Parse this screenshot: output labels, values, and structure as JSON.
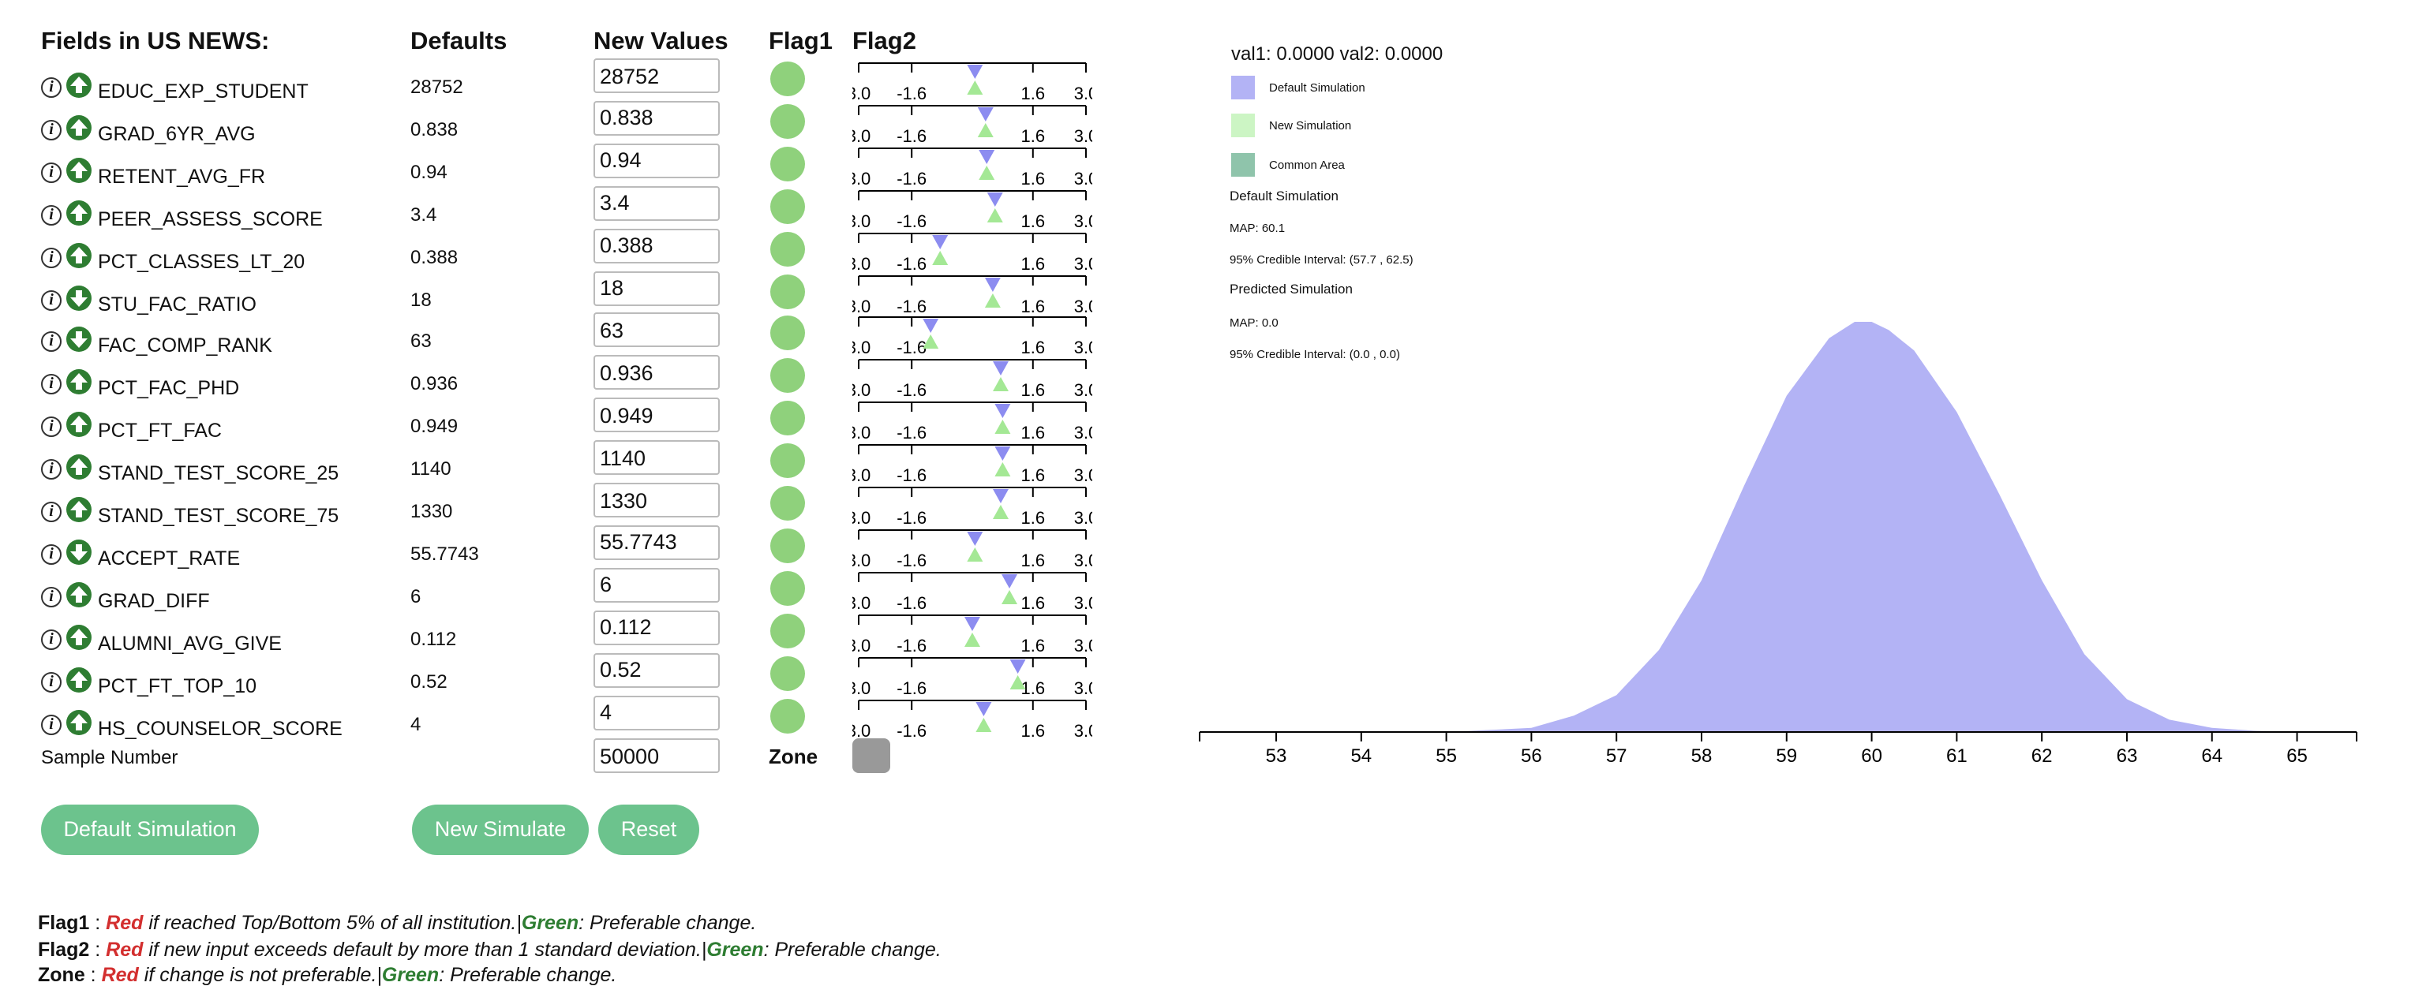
{
  "headers": {
    "fields": "Fields in US NEWS:",
    "defaults": "Defaults",
    "new_values": "New Values",
    "flag1": "Flag1",
    "flag2": "Flag2"
  },
  "fields": [
    {
      "name": "EDUC_EXP_STUDENT",
      "default": "28752",
      "value": "28752",
      "arrow": "up",
      "d": 0.07,
      "n": 0.07
    },
    {
      "name": "GRAD_6YR_AVG",
      "default": "0.838",
      "value": "0.838",
      "arrow": "up",
      "d": 0.35,
      "n": 0.35
    },
    {
      "name": "RETENT_AVG_FR",
      "default": "0.94",
      "value": "0.94",
      "arrow": "up",
      "d": 0.38,
      "n": 0.38
    },
    {
      "name": "PEER_ASSESS_SCORE",
      "default": "3.4",
      "value": "3.4",
      "arrow": "up",
      "d": 0.6,
      "n": 0.6
    },
    {
      "name": "PCT_CLASSES_LT_20",
      "default": "0.388",
      "value": "0.388",
      "arrow": "up",
      "d": -0.85,
      "n": -0.85
    },
    {
      "name": "STU_FAC_RATIO",
      "default": "18",
      "value": "18",
      "arrow": "down",
      "d": 0.54,
      "n": 0.54
    },
    {
      "name": "FAC_COMP_RANK",
      "default": "63",
      "value": "63",
      "arrow": "down",
      "d": -1.1,
      "n": -1.1
    },
    {
      "name": "PCT_FAC_PHD",
      "default": "0.936",
      "value": "0.936",
      "arrow": "up",
      "d": 0.75,
      "n": 0.75
    },
    {
      "name": "PCT_FT_FAC",
      "default": "0.949",
      "value": "0.949",
      "arrow": "up",
      "d": 0.8,
      "n": 0.8
    },
    {
      "name": "STAND_TEST_SCORE_25",
      "default": "1140",
      "value": "1140",
      "arrow": "up",
      "d": 0.8,
      "n": 0.8
    },
    {
      "name": "STAND_TEST_SCORE_75",
      "default": "1330",
      "value": "1330",
      "arrow": "up",
      "d": 0.75,
      "n": 0.75
    },
    {
      "name": "ACCEPT_RATE",
      "default": "55.7743",
      "value": "55.7743",
      "arrow": "down",
      "d": 0.07,
      "n": 0.07
    },
    {
      "name": "GRAD_DIFF",
      "default": "6",
      "value": "6",
      "arrow": "up",
      "d": 0.98,
      "n": 0.98
    },
    {
      "name": "ALUMNI_AVG_GIVE",
      "default": "0.112",
      "value": "0.112",
      "arrow": "up",
      "d": 0.0,
      "n": 0.0
    },
    {
      "name": "PCT_FT_TOP_10",
      "default": "0.52",
      "value": "0.52",
      "arrow": "up",
      "d": 1.2,
      "n": 1.2
    },
    {
      "name": "HS_COUNSELOR_SCORE",
      "default": "4",
      "value": "4",
      "arrow": "up",
      "d": 0.3,
      "n": 0.3
    }
  ],
  "flag2_ticks": [
    "3.0",
    "-1.6",
    "1.6",
    "3.0"
  ],
  "sample": {
    "label": "Sample Number",
    "value": "50000",
    "zone_label": "Zone"
  },
  "buttons": {
    "default_sim": "Default Simulation",
    "new_sim": "New Simulate",
    "reset": "Reset"
  },
  "legend": {
    "flag1": {
      "key": "Flag1",
      "sep": " : ",
      "red": "Red",
      "red_text": " if reached Top/Bottom 5% of all institution.|",
      "green": "Green",
      "green_text": ": Preferable change."
    },
    "flag2": {
      "key": "Flag2",
      "sep": " : ",
      "red": "Red",
      "red_text": " if new input exceeds default by more than 1 standard deviation.|",
      "green": "Green",
      "green_text": ": Preferable change."
    },
    "zone": {
      "key": "Zone",
      "sep": " : ",
      "red": "Red",
      "red_text": " if change is not preferable.|",
      "green": "Green",
      "green_text": ": Preferable change."
    }
  },
  "stats": {
    "vals": "val1: 0.0000 val2: 0.0000",
    "legend_default": "Default Simulation",
    "legend_new": "New Simulation",
    "legend_common": "Common Area",
    "default_title": "Default Simulation",
    "default_map": "MAP: 60.1",
    "default_ci": "95% Credible Interval: (57.7 , 62.5)",
    "pred_title": "Predicted Simulation",
    "pred_map": "MAP: 0.0",
    "pred_ci": "95% Credible Interval: (0.0 , 0.0)"
  },
  "colors": {
    "default_sim": "#b3b3f5",
    "new_sim": "#ccf5c4",
    "common": "#8fc4ab",
    "flag_green": "#8fd17c",
    "button": "#6cc38d",
    "zone": "#999999"
  },
  "chart_data": {
    "type": "area",
    "x_ticks": [
      "53",
      "54",
      "55",
      "56",
      "57",
      "58",
      "59",
      "60",
      "61",
      "62",
      "63",
      "64",
      "65"
    ],
    "xlim": [
      52.1,
      65.7
    ],
    "series": [
      {
        "name": "Default Simulation",
        "x": [
          55.0,
          56.0,
          56.5,
          57.0,
          57.5,
          58.0,
          58.5,
          59.0,
          59.5,
          59.8,
          60.0,
          60.2,
          60.5,
          61.0,
          61.5,
          62.0,
          62.5,
          63.0,
          63.5,
          64.0,
          64.5,
          65.0
        ],
        "y": [
          0.0,
          0.01,
          0.04,
          0.09,
          0.2,
          0.37,
          0.6,
          0.82,
          0.96,
          1.0,
          1.0,
          0.98,
          0.93,
          0.78,
          0.58,
          0.37,
          0.19,
          0.08,
          0.03,
          0.01,
          0.003,
          0.0
        ]
      }
    ]
  }
}
